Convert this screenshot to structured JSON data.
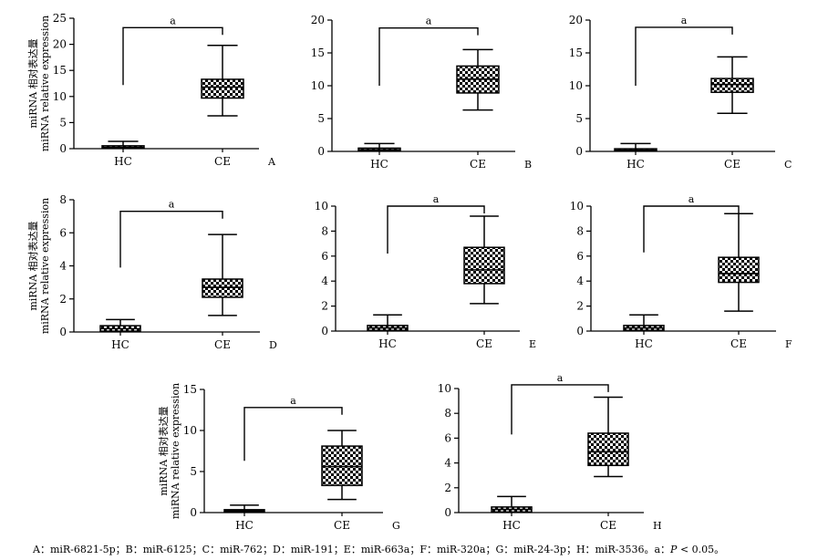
{
  "ylabel_lines": [
    "miRNA 相对表达量",
    "miRNA relative expression"
  ],
  "chart_data": [
    {
      "panel": "A",
      "type": "box",
      "categories": [
        "HC",
        "CE"
      ],
      "ylim": [
        0,
        25
      ],
      "yticks": [
        0,
        5,
        10,
        15,
        20,
        25
      ],
      "boxes": [
        {
          "min": 0.05,
          "q1": 0.05,
          "median": 0.25,
          "q3": 0.55,
          "max": 1.4
        },
        {
          "min": 6.3,
          "q1": 9.7,
          "median": 11.8,
          "q3": 13.3,
          "max": 19.8
        }
      ],
      "bracket": {
        "hc_top": 12.2,
        "top": 23.2,
        "label": "a"
      }
    },
    {
      "panel": "B",
      "type": "box",
      "categories": [
        "HC",
        "CE"
      ],
      "ylim": [
        0,
        20
      ],
      "yticks": [
        0,
        5,
        10,
        15,
        20
      ],
      "boxes": [
        {
          "min": 0.05,
          "q1": 0.05,
          "median": 0.25,
          "q3": 0.5,
          "max": 1.2
        },
        {
          "min": 6.3,
          "q1": 8.9,
          "median": 11.0,
          "q3": 13.0,
          "max": 15.5
        }
      ],
      "bracket": {
        "hc_top": 10.0,
        "top": 18.8,
        "label": "a"
      }
    },
    {
      "panel": "C",
      "type": "box",
      "categories": [
        "HC",
        "CE"
      ],
      "ylim": [
        0,
        20
      ],
      "yticks": [
        0,
        5,
        10,
        15,
        20
      ],
      "boxes": [
        {
          "min": 0.05,
          "q1": 0.05,
          "median": 0.2,
          "q3": 0.4,
          "max": 1.2
        },
        {
          "min": 5.8,
          "q1": 9.0,
          "median": 10.2,
          "q3": 11.1,
          "max": 14.4
        }
      ],
      "bracket": {
        "hc_top": 10.0,
        "top": 18.9,
        "label": "a"
      }
    },
    {
      "panel": "D",
      "type": "box",
      "categories": [
        "HC",
        "CE"
      ],
      "ylim": [
        0,
        8
      ],
      "yticks": [
        0,
        2,
        4,
        6,
        8
      ],
      "boxes": [
        {
          "min": 0.05,
          "q1": 0.05,
          "median": 0.2,
          "q3": 0.38,
          "max": 0.75
        },
        {
          "min": 1.0,
          "q1": 2.1,
          "median": 2.7,
          "q3": 3.2,
          "max": 5.9
        }
      ],
      "bracket": {
        "hc_top": 3.9,
        "top": 7.3,
        "label": "a"
      }
    },
    {
      "panel": "E",
      "type": "box",
      "categories": [
        "HC",
        "CE"
      ],
      "ylim": [
        0,
        10
      ],
      "yticks": [
        0,
        2,
        4,
        6,
        8,
        10
      ],
      "boxes": [
        {
          "min": 0.05,
          "q1": 0.05,
          "median": 0.25,
          "q3": 0.45,
          "max": 1.3
        },
        {
          "min": 2.2,
          "q1": 3.8,
          "median": 4.9,
          "q3": 6.7,
          "max": 9.2
        }
      ],
      "bracket": {
        "hc_top": 6.2,
        "top": 10.0,
        "label": "a"
      }
    },
    {
      "panel": "F",
      "type": "box",
      "categories": [
        "HC",
        "CE"
      ],
      "ylim": [
        0,
        10
      ],
      "yticks": [
        0,
        2,
        4,
        6,
        8,
        10
      ],
      "boxes": [
        {
          "min": 0.05,
          "q1": 0.05,
          "median": 0.25,
          "q3": 0.45,
          "max": 1.3
        },
        {
          "min": 1.6,
          "q1": 3.9,
          "median": 4.6,
          "q3": 5.9,
          "max": 9.4
        }
      ],
      "bracket": {
        "hc_top": 6.3,
        "top": 10.0,
        "label": "a"
      }
    },
    {
      "panel": "G",
      "type": "box",
      "categories": [
        "HC",
        "CE"
      ],
      "ylim": [
        0,
        15
      ],
      "yticks": [
        0,
        5,
        10,
        15
      ],
      "boxes": [
        {
          "min": 0.05,
          "q1": 0.05,
          "median": 0.2,
          "q3": 0.35,
          "max": 0.9
        },
        {
          "min": 1.6,
          "q1": 3.3,
          "median": 5.6,
          "q3": 8.1,
          "max": 10.0
        }
      ],
      "bracket": {
        "hc_top": 6.3,
        "top": 12.8,
        "label": "a"
      }
    },
    {
      "panel": "H",
      "type": "box",
      "categories": [
        "HC",
        "CE"
      ],
      "ylim": [
        0,
        10
      ],
      "yticks": [
        0,
        2,
        4,
        6,
        8,
        10
      ],
      "boxes": [
        {
          "min": 0.05,
          "q1": 0.05,
          "median": 0.25,
          "q3": 0.45,
          "max": 1.3
        },
        {
          "min": 2.9,
          "q1": 3.8,
          "median": 4.9,
          "q3": 6.4,
          "max": 9.3
        }
      ],
      "bracket": {
        "hc_top": 6.3,
        "top": 10.3,
        "label": "a"
      }
    }
  ],
  "caption": {
    "prefix": "A：miR-6821-5p；B：miR-6125；C：miR-762；D：miR-191；E：miR-663a；F：miR-320a；G：miR-24-3p；H：miR-3536。a：",
    "p": "P",
    "suffix": " < 0.05。"
  }
}
